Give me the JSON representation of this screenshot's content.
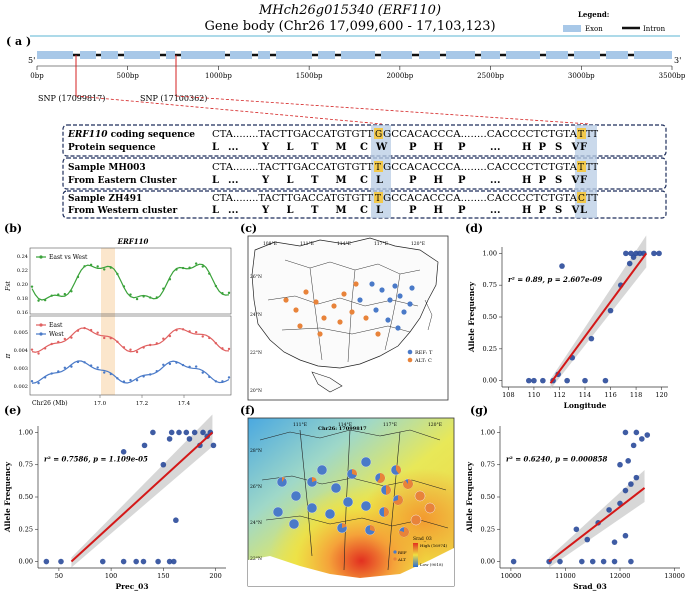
{
  "header": {
    "gene_id": "MHch26g015340",
    "gene_name": "(ERF110)",
    "subtitle": "Gene body (Chr26 17,099,600 - 17,103,123)"
  },
  "legend": {
    "title": "Legend:",
    "exon": "Exon",
    "intron": "Intron",
    "colors": {
      "exon": "#a8c8e8",
      "intron": "#111111"
    }
  },
  "panel_a": {
    "label": "( a )",
    "five_prime": "5'",
    "three_prime": "3'",
    "axis_ticks": [
      "0bp",
      "500bp",
      "1000bp",
      "1500bp",
      "2000bp",
      "2500bp",
      "3000bp",
      "3500bp"
    ],
    "snp1": "SNP (17099817)",
    "snp2": "SNP (17100362)",
    "rows": [
      {
        "label": "ERF110 coding sequence",
        "label_italic_part": "ERF110",
        "seq": "CTA........TACTTGACCATGTGTT",
        "hl1": "G",
        "mid": "GCCACACCCA........CACCCCTCTGTA",
        "hl2": "T",
        "tail": "TT"
      },
      {
        "label": "Protein sequence",
        "aa": [
          "L",
          "...",
          "Y",
          "L",
          "T",
          "M",
          "C",
          "W",
          "P",
          "H",
          "P",
          "...",
          "H",
          "P",
          "S",
          "V",
          "F"
        ]
      },
      {
        "label": "Sample MH003",
        "seq": "CTA........TACTTGACCATGTGTT",
        "hl1": "T",
        "mid": "GCCACACCCA........CACCCCTCTGTA",
        "hl2": "T",
        "tail": "TT"
      },
      {
        "label": "From Eastern Cluster",
        "aa": [
          "L",
          "...",
          "Y",
          "L",
          "T",
          "M",
          "C",
          "L",
          "P",
          "H",
          "P",
          "...",
          "H",
          "P",
          "S",
          "V",
          "F"
        ]
      },
      {
        "label": "Sample ZH491",
        "seq": "CTA........TACTTGACCATGTGTT",
        "hl1": "T",
        "mid": "GCCACACCCA........CACCCCTCTGTA",
        "hl2": "C",
        "tail": "TT"
      },
      {
        "label": "From Western cluster",
        "aa": [
          "L",
          "...",
          "Y",
          "L",
          "T",
          "M",
          "C",
          "L",
          "P",
          "H",
          "P",
          "...",
          "H",
          "P",
          "S",
          "V",
          "L"
        ]
      }
    ]
  },
  "panel_b": {
    "label": "(b)",
    "title": "ERF110",
    "top_legend": "East vs West",
    "top_ylabel": "Fst",
    "top_yticks": [
      "0.24",
      "0.22",
      "0.20",
      "0.18",
      "0.16"
    ],
    "bottom_legend_east": "East",
    "bottom_legend_west": "West",
    "bottom_ylabel": "π",
    "bottom_yticks": [
      "0.005",
      "0.004",
      "0.003",
      "0.002"
    ],
    "xlabel": "Chr26 (Mb)",
    "xticks": [
      "17.0",
      "17.2",
      "17.4"
    ],
    "colors": {
      "fst": "#3aa23a",
      "east": "#e06060",
      "west": "#4a7ac8",
      "highlight": "#fbe6cc"
    }
  },
  "panel_c": {
    "label": "(c)",
    "lon_ticks": [
      "108°E",
      "111°E",
      "114°E",
      "117°E",
      "120°E"
    ],
    "lat_ticks": [
      "26°N",
      "24°N",
      "22°N",
      "20°N"
    ],
    "legend_ref": "REF: T",
    "legend_alt": "ALT: C"
  },
  "panel_f": {
    "label": "(f)",
    "title": "Chr26: 17099817",
    "lon_ticks": [
      "111°E",
      "114°E",
      "117°E",
      "120°E"
    ],
    "lat_ticks": [
      "28°N",
      "26°N",
      "24°N",
      "22°N"
    ],
    "legend_title": "Srad_03",
    "legend_high": "High (16974)",
    "legend_low": "Low (9018)",
    "legend_ref": "REF",
    "legend_alt": "ALT"
  },
  "chart_data": [
    {
      "panel": "(d)",
      "type": "scatter",
      "xlabel": "Longitude",
      "ylabel": "Allele Frequency",
      "annotation_r2": "r² = 0.89, p = 2.607e-09",
      "xlim": [
        107.5,
        120.5
      ],
      "ylim": [
        -0.05,
        1.05
      ],
      "xticks": [
        108,
        110,
        112,
        114,
        116,
        118,
        120
      ],
      "yticks": [
        0.0,
        0.25,
        0.5,
        0.75,
        1.0
      ],
      "points": [
        [
          109.6,
          0.0
        ],
        [
          110.0,
          0.0
        ],
        [
          110.7,
          0.0
        ],
        [
          111.5,
          0.0
        ],
        [
          111.9,
          0.05
        ],
        [
          114.0,
          0.0
        ],
        [
          115.6,
          0.0
        ],
        [
          112.6,
          0.0
        ],
        [
          112.2,
          0.9
        ],
        [
          114.5,
          0.33
        ],
        [
          113.0,
          0.18
        ],
        [
          116.0,
          0.55
        ],
        [
          116.8,
          0.75
        ],
        [
          117.5,
          0.92
        ],
        [
          117.8,
          0.97
        ],
        [
          118.0,
          1.0
        ],
        [
          118.3,
          1.0
        ],
        [
          118.6,
          1.0
        ],
        [
          119.4,
          1.0
        ],
        [
          119.8,
          1.0
        ],
        [
          117.6,
          1.0
        ],
        [
          117.2,
          1.0
        ]
      ],
      "fit_line": [
        [
          111.3,
          -0.02
        ],
        [
          118.8,
          1.0
        ]
      ]
    },
    {
      "panel": "(e)",
      "type": "scatter",
      "xlabel": "Prec_03",
      "ylabel": "Allele Frequency",
      "annotation_r2": "r² = 0.7586, p = 1.109e-05",
      "xlim": [
        30,
        210
      ],
      "ylim": [
        -0.05,
        1.05
      ],
      "xticks": [
        50,
        100,
        150,
        200
      ],
      "yticks": [
        0.0,
        0.25,
        0.5,
        0.75,
        1.0
      ],
      "points": [
        [
          38,
          0.0
        ],
        [
          52,
          0.0
        ],
        [
          92,
          0.0
        ],
        [
          112,
          0.0
        ],
        [
          124,
          0.0
        ],
        [
          131,
          0.0
        ],
        [
          145,
          0.0
        ],
        [
          156,
          0.0
        ],
        [
          160,
          0.0
        ],
        [
          112,
          0.85
        ],
        [
          132,
          0.9
        ],
        [
          140,
          1.0
        ],
        [
          150,
          0.75
        ],
        [
          156,
          0.95
        ],
        [
          158,
          1.0
        ],
        [
          162,
          0.32
        ],
        [
          165,
          1.0
        ],
        [
          172,
          1.0
        ],
        [
          180,
          1.0
        ],
        [
          188,
          1.0
        ],
        [
          192,
          0.97
        ],
        [
          198,
          0.9
        ],
        [
          195,
          1.0
        ],
        [
          185,
          0.9
        ],
        [
          175,
          0.95
        ]
      ],
      "fit_line": [
        [
          62,
          0.0
        ],
        [
          197,
          1.0
        ]
      ]
    },
    {
      "panel": "(g)",
      "type": "scatter",
      "xlabel": "Srad_03",
      "ylabel": "Allele Frequency",
      "annotation_r2": "r² = 0.6240, p = 0.000858",
      "xlim": [
        9800,
        13100
      ],
      "ylim": [
        -0.05,
        1.05
      ],
      "xticks": [
        10000,
        11000,
        12000,
        13000
      ],
      "yticks": [
        0.0,
        0.25,
        0.5,
        0.75,
        1.0
      ],
      "points": [
        [
          10050,
          0.0
        ],
        [
          10700,
          0.0
        ],
        [
          10900,
          0.0
        ],
        [
          11300,
          0.0
        ],
        [
          11500,
          0.0
        ],
        [
          11700,
          0.0
        ],
        [
          11900,
          0.0
        ],
        [
          12200,
          0.0
        ],
        [
          11200,
          0.25
        ],
        [
          11600,
          0.3
        ],
        [
          11400,
          0.17
        ],
        [
          12000,
          0.45
        ],
        [
          12100,
          0.55
        ],
        [
          12200,
          0.6
        ],
        [
          11800,
          0.4
        ],
        [
          12300,
          0.65
        ],
        [
          12100,
          0.2
        ],
        [
          11900,
          0.15
        ],
        [
          12000,
          0.75
        ],
        [
          12150,
          0.78
        ],
        [
          12250,
          0.9
        ],
        [
          12400,
          0.95
        ],
        [
          12500,
          0.98
        ],
        [
          12300,
          1.0
        ],
        [
          12100,
          1.0
        ]
      ],
      "fit_line": [
        [
          10700,
          0.0
        ],
        [
          12450,
          0.57
        ]
      ]
    }
  ]
}
